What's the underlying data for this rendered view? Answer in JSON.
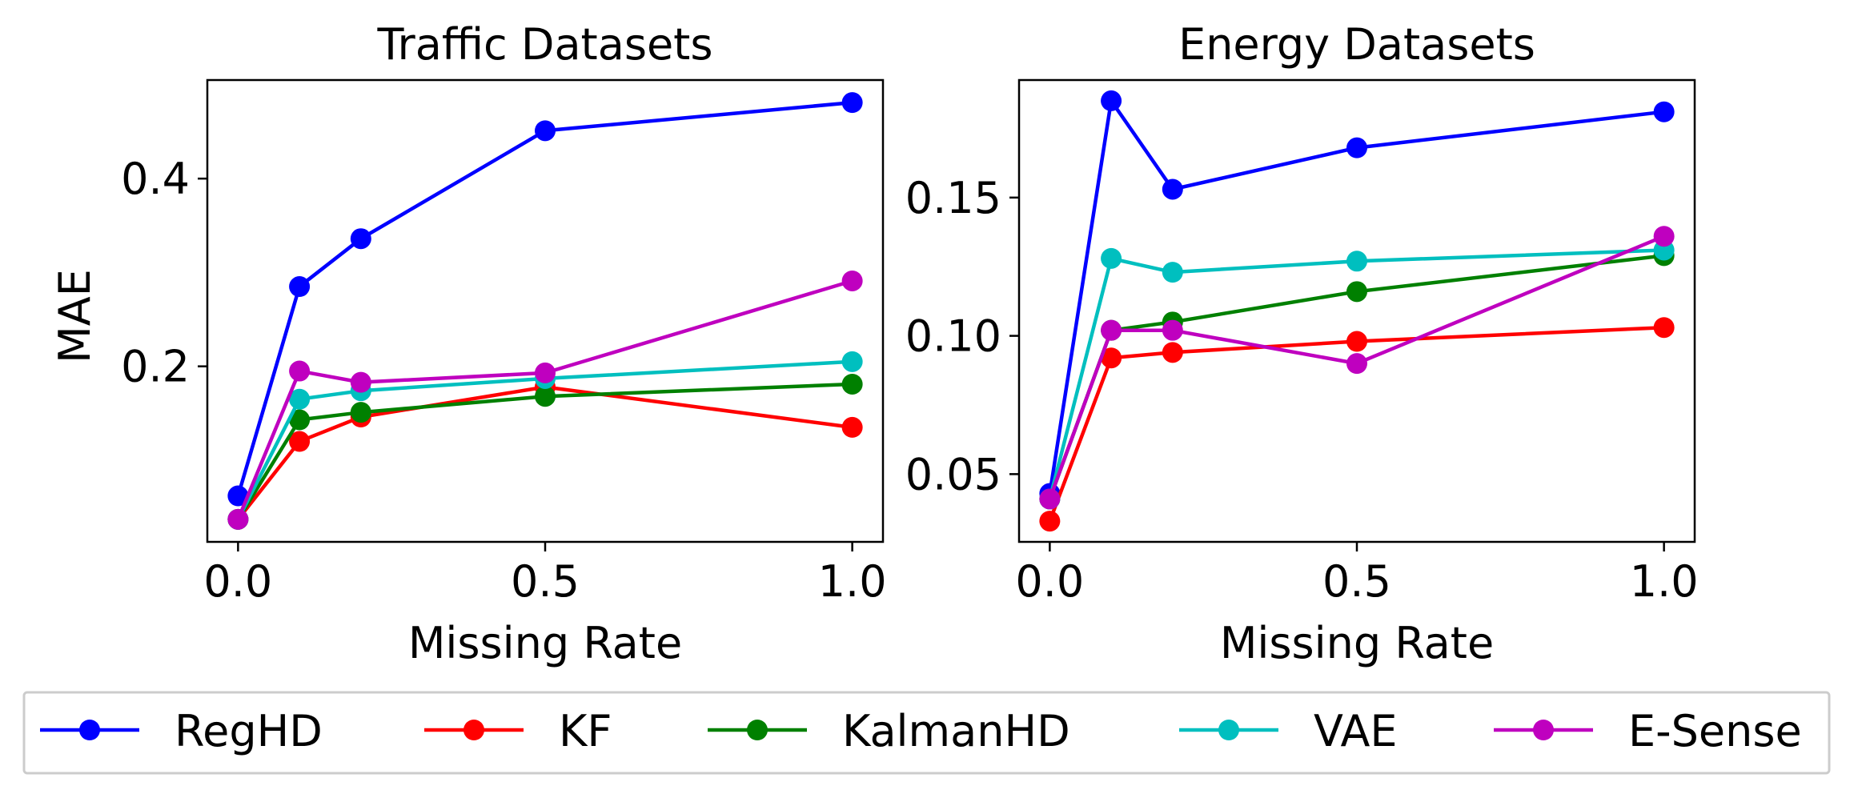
{
  "chart_data": [
    {
      "type": "line",
      "title": "Traffic Datasets",
      "xlabel": "Missing Rate",
      "ylabel": "MAE",
      "xlim": [
        -0.05,
        1.05
      ],
      "ylim": [
        0.013,
        0.505
      ],
      "xticks": [
        {
          "value": 0.0,
          "label": "0.0"
        },
        {
          "value": 0.5,
          "label": "0.5"
        },
        {
          "value": 1.0,
          "label": "1.0"
        }
      ],
      "yticks": [
        {
          "value": 0.2,
          "label": "0.2"
        },
        {
          "value": 0.4,
          "label": "0.4"
        }
      ],
      "x": [
        0.0,
        0.1,
        0.2,
        0.5,
        1.0
      ],
      "series": [
        {
          "name": "RegHD",
          "color": "#0000ff",
          "values": [
            0.062,
            0.285,
            0.336,
            0.451,
            0.481
          ]
        },
        {
          "name": "KF",
          "color": "#ff0000",
          "values": [
            0.037,
            0.12,
            0.146,
            0.178,
            0.135
          ]
        },
        {
          "name": "KalmanHD",
          "color": "#008000",
          "values": [
            0.037,
            0.143,
            0.151,
            0.168,
            0.181
          ]
        },
        {
          "name": "VAE",
          "color": "#00bfbf",
          "values": [
            0.037,
            0.165,
            0.174,
            0.187,
            0.205
          ]
        },
        {
          "name": "E-Sense",
          "color": "#bf00bf",
          "values": [
            0.037,
            0.195,
            0.183,
            0.193,
            0.291
          ]
        }
      ]
    },
    {
      "type": "line",
      "title": "Energy Datasets",
      "xlabel": "Missing Rate",
      "ylabel": "",
      "xlim": [
        -0.05,
        1.05
      ],
      "ylim": [
        0.0255,
        0.1925
      ],
      "xticks": [
        {
          "value": 0.0,
          "label": "0.0"
        },
        {
          "value": 0.5,
          "label": "0.5"
        },
        {
          "value": 1.0,
          "label": "1.0"
        }
      ],
      "yticks": [
        {
          "value": 0.05,
          "label": "0.05"
        },
        {
          "value": 0.1,
          "label": "0.10"
        },
        {
          "value": 0.15,
          "label": "0.15"
        }
      ],
      "x": [
        0.0,
        0.1,
        0.2,
        0.5,
        1.0
      ],
      "series": [
        {
          "name": "RegHD",
          "color": "#0000ff",
          "values": [
            0.043,
            0.185,
            0.153,
            0.168,
            0.181
          ]
        },
        {
          "name": "KF",
          "color": "#ff0000",
          "values": [
            0.033,
            0.092,
            0.094,
            0.098,
            0.103
          ]
        },
        {
          "name": "KalmanHD",
          "color": "#008000",
          "values": [
            0.041,
            0.102,
            0.105,
            0.116,
            0.129
          ]
        },
        {
          "name": "VAE",
          "color": "#00bfbf",
          "values": [
            0.041,
            0.128,
            0.123,
            0.127,
            0.131
          ]
        },
        {
          "name": "E-Sense",
          "color": "#bf00bf",
          "values": [
            0.041,
            0.102,
            0.102,
            0.09,
            0.136
          ]
        }
      ]
    }
  ],
  "legend": {
    "placement": "bottom",
    "entries": [
      {
        "name": "RegHD",
        "color": "#0000ff"
      },
      {
        "name": "KF",
        "color": "#ff0000"
      },
      {
        "name": "KalmanHD",
        "color": "#008000"
      },
      {
        "name": "VAE",
        "color": "#00bfbf"
      },
      {
        "name": "E-Sense",
        "color": "#bf00bf"
      }
    ]
  }
}
